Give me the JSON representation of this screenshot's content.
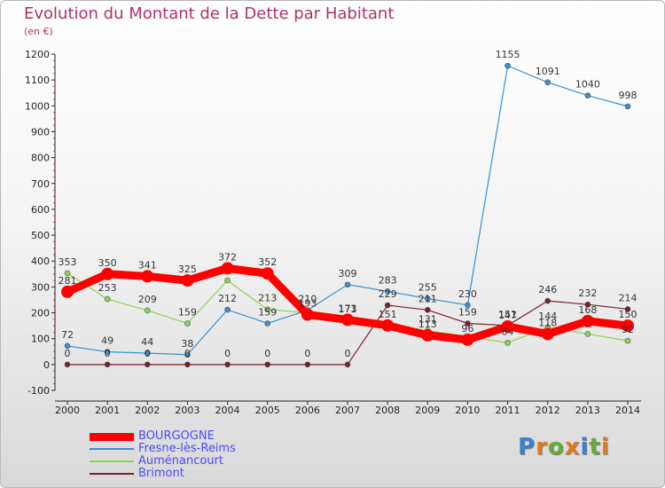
{
  "title": "Evolution du Montant de la Dette par Habitant",
  "subtitle": "(en €)",
  "logo": {
    "text": "Proxiti",
    "colors": [
      "#3a7fd0",
      "#e07a1a",
      "#6aa83a",
      "#e07a1a",
      "#3a7fd0",
      "#6aa83a",
      "#e07a1a"
    ]
  },
  "chart_data": {
    "type": "line",
    "x": [
      "2000",
      "2001",
      "2002",
      "2003",
      "2004",
      "2005",
      "2006",
      "2007",
      "2008",
      "2009",
      "2010",
      "2011",
      "2012",
      "2013",
      "2014"
    ],
    "ylim": [
      -100,
      1200
    ],
    "yticks": [
      -100,
      0,
      100,
      200,
      300,
      400,
      500,
      600,
      700,
      800,
      900,
      1000,
      1100,
      1200
    ],
    "grid": false,
    "legend_position": "bottom-left",
    "series": [
      {
        "name": "BOURGOGNE",
        "color": "#ff0000",
        "values": [
          281,
          350,
          341,
          325,
          372,
          352,
          193,
          173,
          151,
          113,
          96,
          147,
          118,
          168,
          150
        ],
        "labels": [
          "281",
          "350",
          "341",
          "325",
          "372",
          "352",
          "193",
          "173",
          "151",
          "113",
          "96",
          "147",
          "118",
          "168",
          "150"
        ]
      },
      {
        "name": "Fresne-lès-Reims",
        "color": "#3c8fd0",
        "values": [
          72,
          49,
          44,
          38,
          212,
          159,
          210,
          309,
          283,
          255,
          230,
          1155,
          1091,
          1040,
          998
        ],
        "labels": [
          "72",
          "49",
          "44",
          "38",
          "212",
          "159",
          "210",
          "309",
          "283",
          "255",
          "230",
          "1155",
          "1091",
          "1040",
          "998"
        ]
      },
      {
        "name": "Auménancourt",
        "color": "#8ad450",
        "values": [
          353,
          253,
          209,
          159,
          325,
          213,
          200,
          171,
          157,
          131,
          109,
          84,
          144,
          118,
          92
        ],
        "labels": [
          "353",
          "253",
          "209",
          "159",
          "",
          "213",
          "",
          "171",
          "",
          "131",
          "",
          "84",
          "144",
          "",
          "92"
        ]
      },
      {
        "name": "Brimont",
        "color": "#7a1f2e",
        "values": [
          0,
          0,
          0,
          0,
          0,
          0,
          0,
          0,
          229,
          211,
          159,
          151,
          246,
          232,
          214
        ],
        "labels": [
          "0",
          "0",
          "0",
          "0",
          "0",
          "0",
          "0",
          "0",
          "229",
          "211",
          "159",
          "151",
          "246",
          "232",
          "214"
        ]
      }
    ]
  }
}
